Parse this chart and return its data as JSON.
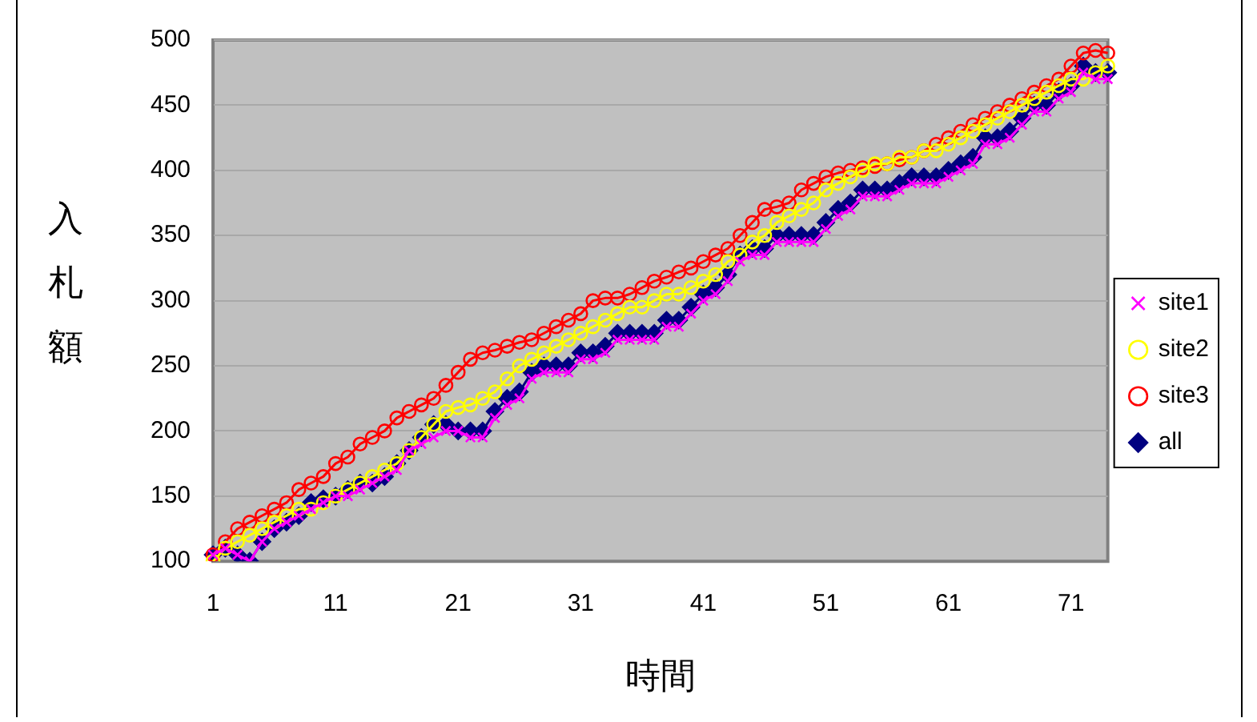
{
  "chart_data": {
    "type": "line",
    "xlabel": "時間",
    "ylabel": "入札額",
    "categories": [
      "1",
      null,
      null,
      null,
      null,
      null,
      null,
      null,
      null,
      null,
      "11",
      null,
      null,
      null,
      null,
      null,
      null,
      null,
      null,
      null,
      "21",
      null,
      null,
      null,
      null,
      null,
      null,
      null,
      null,
      null,
      "31",
      null,
      null,
      null,
      null,
      null,
      null,
      null,
      null,
      null,
      "41",
      null,
      null,
      null,
      null,
      null,
      null,
      null,
      null,
      null,
      "51",
      null,
      null,
      null,
      null,
      null,
      null,
      null,
      null,
      null,
      "61",
      null,
      null,
      null,
      null,
      null,
      null,
      null,
      null,
      null,
      "71",
      null,
      null,
      null
    ],
    "ylim": [
      100,
      500
    ],
    "yticks": [
      100,
      150,
      200,
      250,
      300,
      350,
      400,
      450,
      500
    ],
    "grid": "y",
    "legend": "right",
    "line_style": "solid",
    "series": [
      {
        "name": "site1",
        "color": "#ff00ff",
        "marker": "cross",
        "values": [
          105,
          110,
          105,
          100,
          115,
          125,
          130,
          135,
          140,
          145,
          150,
          150,
          155,
          160,
          165,
          170,
          185,
          190,
          195,
          200,
          200,
          195,
          195,
          210,
          220,
          225,
          240,
          245,
          245,
          245,
          255,
          255,
          260,
          270,
          270,
          270,
          270,
          280,
          280,
          290,
          300,
          305,
          315,
          330,
          335,
          335,
          345,
          345,
          345,
          345,
          355,
          365,
          370,
          380,
          380,
          380,
          385,
          390,
          390,
          390,
          395,
          400,
          405,
          420,
          420,
          425,
          435,
          445,
          445,
          455,
          460,
          475,
          470,
          470
        ]
      },
      {
        "name": "site2",
        "color": "#ffff00",
        "marker": "circle",
        "values": [
          100,
          110,
          115,
          120,
          125,
          130,
          135,
          140,
          140,
          145,
          150,
          155,
          160,
          165,
          170,
          175,
          185,
          195,
          205,
          215,
          218,
          220,
          225,
          230,
          240,
          250,
          255,
          260,
          265,
          270,
          275,
          280,
          285,
          290,
          295,
          295,
          300,
          305,
          305,
          310,
          315,
          320,
          330,
          335,
          345,
          350,
          360,
          365,
          370,
          375,
          385,
          390,
          395,
          400,
          405,
          405,
          410,
          410,
          415,
          415,
          420,
          425,
          430,
          435,
          440,
          445,
          450,
          455,
          460,
          465,
          470,
          470,
          475,
          480
        ]
      },
      {
        "name": "site3",
        "color": "#ff0000",
        "marker": "circle",
        "values": [
          105,
          115,
          125,
          130,
          135,
          140,
          145,
          155,
          160,
          165,
          175,
          180,
          190,
          195,
          200,
          210,
          215,
          220,
          225,
          235,
          245,
          255,
          260,
          262,
          265,
          268,
          270,
          275,
          280,
          285,
          290,
          300,
          302,
          302,
          305,
          310,
          315,
          318,
          322,
          325,
          330,
          335,
          340,
          350,
          360,
          370,
          372,
          375,
          385,
          390,
          395,
          398,
          400,
          402,
          403,
          405,
          408,
          410,
          415,
          420,
          425,
          430,
          435,
          440,
          445,
          450,
          455,
          460,
          465,
          470,
          480,
          490,
          492,
          490
        ]
      },
      {
        "name": "all",
        "color": "#000080",
        "marker": "diamond",
        "values": [
          105,
          110,
          105,
          100,
          115,
          125,
          130,
          135,
          145,
          148,
          150,
          155,
          160,
          160,
          165,
          175,
          185,
          195,
          205,
          205,
          200,
          200,
          200,
          215,
          225,
          230,
          245,
          250,
          250,
          250,
          260,
          260,
          265,
          275,
          275,
          275,
          275,
          285,
          285,
          295,
          305,
          310,
          320,
          335,
          340,
          340,
          350,
          350,
          350,
          350,
          360,
          370,
          375,
          385,
          385,
          385,
          390,
          395,
          395,
          395,
          400,
          405,
          410,
          425,
          425,
          430,
          440,
          450,
          450,
          460,
          465,
          480,
          475,
          475
        ]
      }
    ]
  }
}
